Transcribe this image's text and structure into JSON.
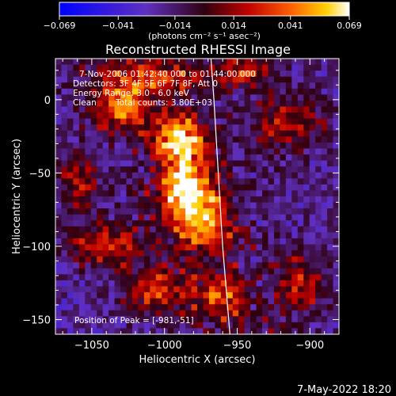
{
  "chart_data": {
    "type": "heatmap",
    "title": "Reconstructed RHESSI Image",
    "xlabel": "Heliocentric X (arcsec)",
    "ylabel": "Heliocentric Y (arcsec)",
    "xlim": [
      -1075,
      -880
    ],
    "ylim": [
      -160,
      28
    ],
    "x_ticks": [
      -1050,
      -1000,
      -950,
      -900
    ],
    "x_tick_labels": [
      "−1050",
      "−1000",
      "−950",
      "−900"
    ],
    "y_ticks": [
      0,
      -50,
      -100,
      -150
    ],
    "y_tick_labels": [
      "0",
      "−50",
      "−100",
      "−150"
    ],
    "colorbar": {
      "min": -0.069,
      "max": 0.069,
      "ticks": [
        -0.069,
        -0.041,
        -0.014,
        0.014,
        0.041,
        0.069
      ],
      "tick_labels": [
        "−0.069",
        "−0.041",
        "−0.014",
        "0.014",
        "0.041",
        "0.069"
      ],
      "unit_label": "(photons cm⁻² s⁻¹ asec⁻²)"
    },
    "annotations": {
      "time_range": "7-Nov-2006 01:42:40.000 to 01:44:00.000",
      "detectors": "Detectors: 3F 4F 5F 6F 7F 8F, Att 0",
      "energy": "Energy Range: 3.0 - 6.0 keV",
      "method": "Clean",
      "counts": "Total counts: 3.80E+03",
      "peak": "Position of Peak = [-981,-51]"
    },
    "peak": {
      "x": -981,
      "y": -51
    },
    "limb_curve": [
      [
        -968,
        28
      ],
      [
        -966,
        0
      ],
      [
        -963,
        -50
      ],
      [
        -960,
        -100
      ],
      [
        -955,
        -160
      ]
    ],
    "bright_features": [
      {
        "x": -985,
        "y": -60,
        "sx": 12,
        "sy": 18,
        "amp": 1.0
      },
      {
        "x": -990,
        "y": -25,
        "sx": 12,
        "sy": 10,
        "amp": 0.8
      },
      {
        "x": -1030,
        "y": -5,
        "sx": 14,
        "sy": 10,
        "amp": 0.65
      },
      {
        "x": -1010,
        "y": 15,
        "sx": 25,
        "sy": 8,
        "amp": 0.55
      },
      {
        "x": -970,
        "y": -85,
        "sx": 12,
        "sy": 14,
        "amp": 0.6
      },
      {
        "x": -1040,
        "y": -100,
        "sx": 18,
        "sy": 10,
        "amp": 0.55
      },
      {
        "x": -1005,
        "y": -130,
        "sx": 16,
        "sy": 10,
        "amp": 0.55
      },
      {
        "x": -960,
        "y": -135,
        "sx": 12,
        "sy": 12,
        "amp": 0.5
      },
      {
        "x": -915,
        "y": -15,
        "sx": 18,
        "sy": 14,
        "amp": 0.45
      },
      {
        "x": -905,
        "y": -125,
        "sx": 12,
        "sy": 14,
        "amp": 0.45
      },
      {
        "x": -1060,
        "y": -55,
        "sx": 10,
        "sy": 15,
        "amp": 0.4
      },
      {
        "x": -945,
        "y": 20,
        "sx": 14,
        "sy": 8,
        "amp": 0.5
      }
    ]
  },
  "footer": {
    "date_stamp": "7-May-2022 18:20"
  }
}
